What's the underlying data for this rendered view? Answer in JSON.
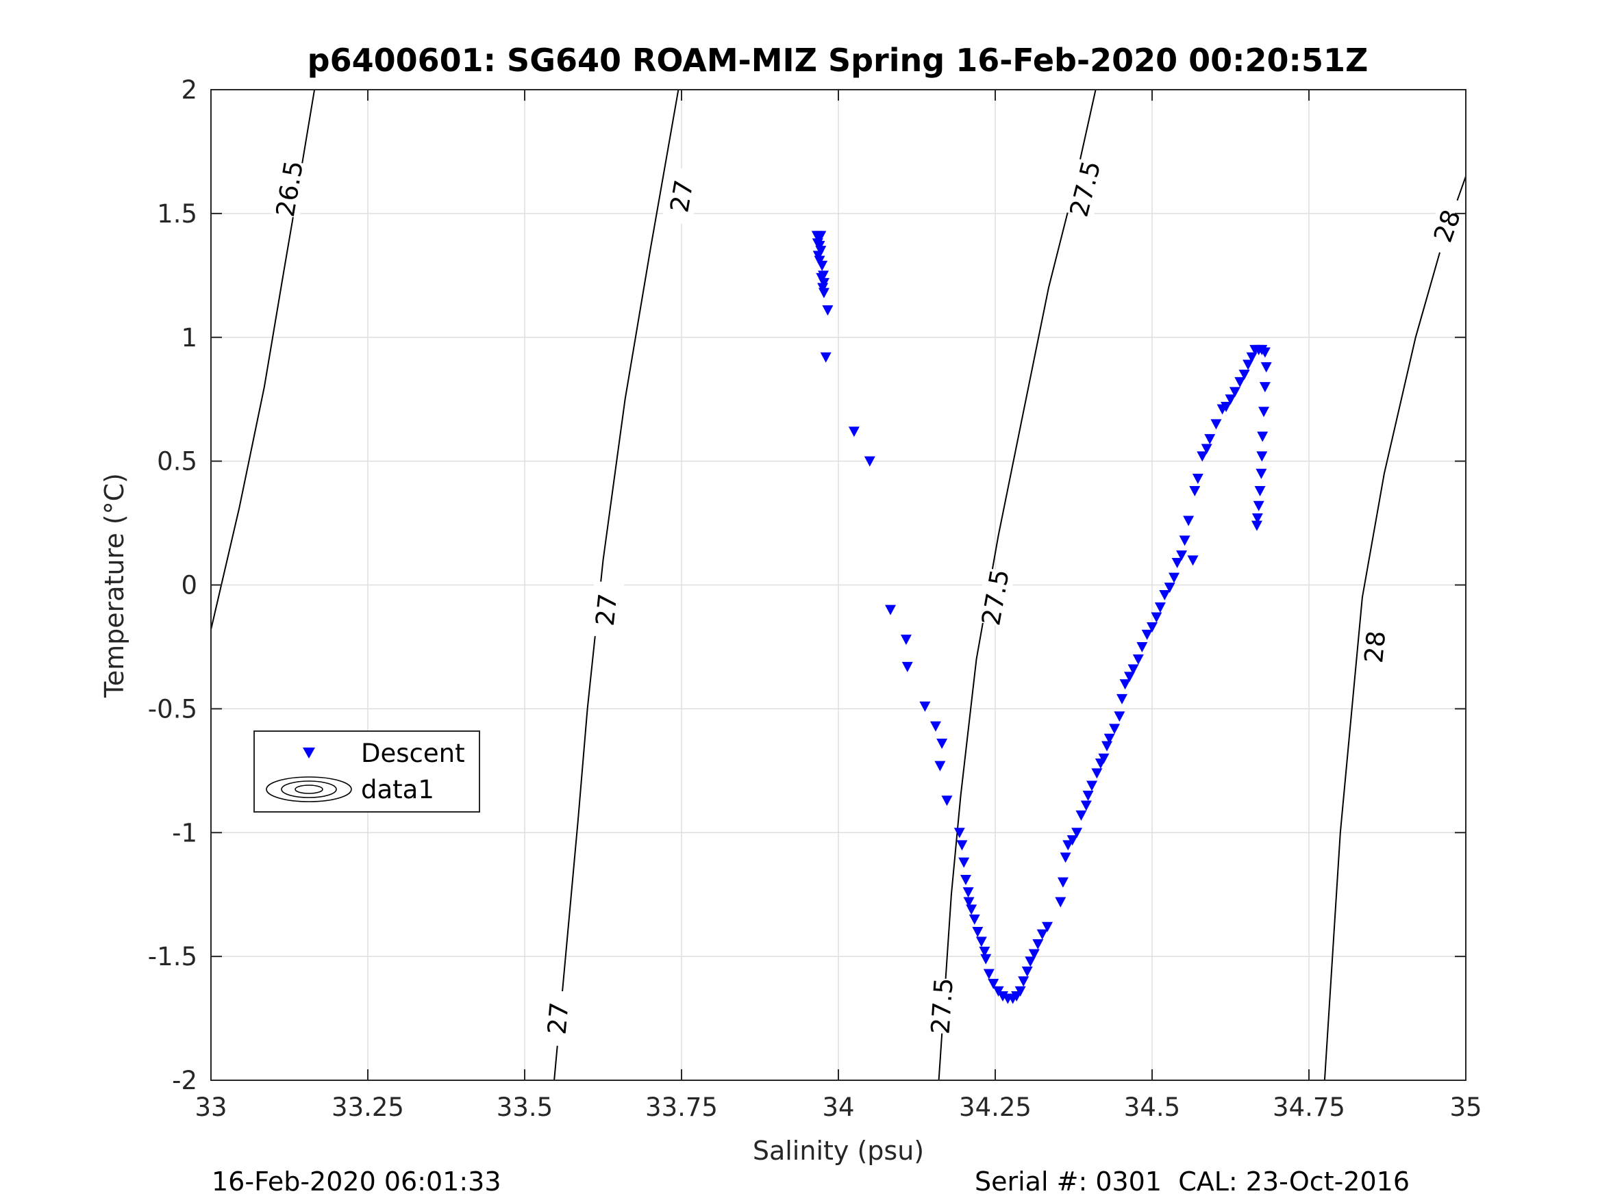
{
  "chart_data": {
    "type": "scatter",
    "title": "p6400601: SG640 ROAM-MIZ Spring 16-Feb-2020 00:20:51Z",
    "xlabel": "Salinity (psu)",
    "ylabel": "Temperature (°C)",
    "xlim": [
      33,
      35
    ],
    "ylim": [
      -2,
      2
    ],
    "xticks": [
      33,
      33.25,
      33.5,
      33.75,
      34,
      34.25,
      34.5,
      34.75,
      35
    ],
    "xtick_labels": [
      "33",
      "33.25",
      "33.5",
      "33.75",
      "34",
      "34.25",
      "34.5",
      "34.75",
      "35"
    ],
    "yticks": [
      -2,
      -1.5,
      -1,
      -0.5,
      0,
      0.5,
      1,
      1.5,
      2
    ],
    "ytick_labels": [
      "-2",
      "-1.5",
      "-1",
      "-0.5",
      "0",
      "0.5",
      "1",
      "1.5",
      "2"
    ],
    "grid": true,
    "legend": {
      "placement": "lower-left",
      "entries": [
        "Descent",
        "data1"
      ]
    },
    "series": [
      {
        "name": "Descent",
        "marker": "down-triangle",
        "color": "#0000ff",
        "points": [
          [
            33.966,
            1.41
          ],
          [
            33.969,
            1.41
          ],
          [
            33.972,
            1.41
          ],
          [
            33.967,
            1.38
          ],
          [
            33.97,
            1.37
          ],
          [
            33.972,
            1.35
          ],
          [
            33.968,
            1.33
          ],
          [
            33.97,
            1.31
          ],
          [
            33.974,
            1.29
          ],
          [
            33.976,
            1.25
          ],
          [
            33.973,
            1.24
          ],
          [
            33.977,
            1.22
          ],
          [
            33.975,
            1.2
          ],
          [
            33.977,
            1.18
          ],
          [
            33.983,
            1.11
          ],
          [
            33.98,
            0.92
          ],
          [
            34.025,
            0.62
          ],
          [
            34.05,
            0.5
          ],
          [
            34.083,
            -0.1
          ],
          [
            34.108,
            -0.22
          ],
          [
            34.11,
            -0.33
          ],
          [
            34.138,
            -0.49
          ],
          [
            34.155,
            -0.57
          ],
          [
            34.165,
            -0.64
          ],
          [
            34.162,
            -0.73
          ],
          [
            34.173,
            -0.87
          ],
          [
            34.193,
            -1.0
          ],
          [
            34.197,
            -1.05
          ],
          [
            34.2,
            -1.12
          ],
          [
            34.203,
            -1.19
          ],
          [
            34.207,
            -1.24
          ],
          [
            34.208,
            -1.28
          ],
          [
            34.212,
            -1.31
          ],
          [
            34.217,
            -1.35
          ],
          [
            34.222,
            -1.4
          ],
          [
            34.228,
            -1.44
          ],
          [
            34.233,
            -1.48
          ],
          [
            34.235,
            -1.51
          ],
          [
            34.24,
            -1.57
          ],
          [
            34.247,
            -1.61
          ],
          [
            34.255,
            -1.64
          ],
          [
            34.262,
            -1.66
          ],
          [
            34.27,
            -1.67
          ],
          [
            34.278,
            -1.67
          ],
          [
            34.284,
            -1.66
          ],
          [
            34.29,
            -1.64
          ],
          [
            34.295,
            -1.6
          ],
          [
            34.301,
            -1.56
          ],
          [
            34.306,
            -1.52
          ],
          [
            34.312,
            -1.49
          ],
          [
            34.318,
            -1.45
          ],
          [
            34.325,
            -1.41
          ],
          [
            34.333,
            -1.38
          ],
          [
            34.354,
            -1.28
          ],
          [
            34.358,
            -1.2
          ],
          [
            34.362,
            -1.1
          ],
          [
            34.366,
            -1.05
          ],
          [
            34.373,
            -1.03
          ],
          [
            34.38,
            -1.0
          ],
          [
            34.387,
            -0.93
          ],
          [
            34.395,
            -0.89
          ],
          [
            34.398,
            -0.85
          ],
          [
            34.404,
            -0.81
          ],
          [
            34.412,
            -0.76
          ],
          [
            34.418,
            -0.72
          ],
          [
            34.423,
            -0.7
          ],
          [
            34.428,
            -0.65
          ],
          [
            34.432,
            -0.62
          ],
          [
            34.44,
            -0.58
          ],
          [
            34.448,
            -0.53
          ],
          [
            34.452,
            -0.46
          ],
          [
            34.457,
            -0.4
          ],
          [
            34.464,
            -0.37
          ],
          [
            34.47,
            -0.34
          ],
          [
            34.478,
            -0.3
          ],
          [
            34.484,
            -0.25
          ],
          [
            34.492,
            -0.2
          ],
          [
            34.5,
            -0.17
          ],
          [
            34.507,
            -0.13
          ],
          [
            34.513,
            -0.09
          ],
          [
            34.52,
            -0.04
          ],
          [
            34.528,
            -0.01
          ],
          [
            34.535,
            0.03
          ],
          [
            34.54,
            0.09
          ],
          [
            34.547,
            0.12
          ],
          [
            34.552,
            0.18
          ],
          [
            34.558,
            0.26
          ],
          [
            34.565,
            0.1
          ],
          [
            34.568,
            0.38
          ],
          [
            34.573,
            0.43
          ],
          [
            34.58,
            0.52
          ],
          [
            34.587,
            0.55
          ],
          [
            34.592,
            0.59
          ],
          [
            34.602,
            0.65
          ],
          [
            34.612,
            0.71
          ],
          [
            34.618,
            0.72
          ],
          [
            34.625,
            0.75
          ],
          [
            34.632,
            0.78
          ],
          [
            34.64,
            0.82
          ],
          [
            34.647,
            0.85
          ],
          [
            34.653,
            0.89
          ],
          [
            34.659,
            0.92
          ],
          [
            34.664,
            0.95
          ],
          [
            34.67,
            0.95
          ],
          [
            34.675,
            0.95
          ],
          [
            34.68,
            0.94
          ],
          [
            34.682,
            0.88
          ],
          [
            34.68,
            0.8
          ],
          [
            34.678,
            0.7
          ],
          [
            34.676,
            0.6
          ],
          [
            34.675,
            0.52
          ],
          [
            34.674,
            0.45
          ],
          [
            34.672,
            0.38
          ],
          [
            34.67,
            0.32
          ],
          [
            34.668,
            0.27
          ],
          [
            34.667,
            0.24
          ]
        ]
      }
    ],
    "contours": {
      "name": "data1",
      "levels": [
        {
          "level": "26.5",
          "points": [
            [
              33.0,
              -0.18
            ],
            [
              33.045,
              0.31
            ],
            [
              33.085,
              0.8
            ],
            [
              33.115,
              1.25
            ],
            [
              33.14,
              1.62
            ],
            [
              33.165,
              2.0
            ]
          ],
          "labels": [
            [
              33.125,
              1.6
            ]
          ]
        },
        {
          "level": "27",
          "points": [
            [
              33.547,
              -2.0
            ],
            [
              33.567,
              -1.45
            ],
            [
              33.585,
              -0.95
            ],
            [
              33.6,
              -0.5
            ],
            [
              33.625,
              0.1
            ],
            [
              33.66,
              0.75
            ],
            [
              33.7,
              1.35
            ],
            [
              33.745,
              2.0
            ]
          ],
          "labels": [
            [
              33.553,
              -1.75
            ],
            [
              33.63,
              -0.1
            ],
            [
              33.75,
              1.57
            ]
          ]
        },
        {
          "level": "27.5",
          "points": [
            [
              34.16,
              -2.0
            ],
            [
              34.18,
              -1.25
            ],
            [
              34.195,
              -0.85
            ],
            [
              34.22,
              -0.3
            ],
            [
              34.255,
              0.2
            ],
            [
              34.295,
              0.7
            ],
            [
              34.335,
              1.2
            ],
            [
              34.375,
              1.6
            ],
            [
              34.41,
              2.0
            ]
          ],
          "labels": [
            [
              34.165,
              -1.7
            ],
            [
              34.25,
              -0.05
            ],
            [
              34.393,
              1.6
            ]
          ]
        },
        {
          "level": "28",
          "points": [
            [
              34.775,
              -2.0
            ],
            [
              34.8,
              -1.0
            ],
            [
              34.835,
              -0.05
            ],
            [
              34.87,
              0.45
            ],
            [
              34.92,
              1.0
            ],
            [
              34.965,
              1.4
            ],
            [
              35.0,
              1.65
            ]
          ],
          "labels": [
            [
              34.855,
              -0.25
            ],
            [
              34.97,
              1.45
            ]
          ]
        }
      ]
    }
  },
  "footer": {
    "left": "16-Feb-2020 06:01:33",
    "right": "Serial #: 0301  CAL: 23-Oct-2016"
  }
}
